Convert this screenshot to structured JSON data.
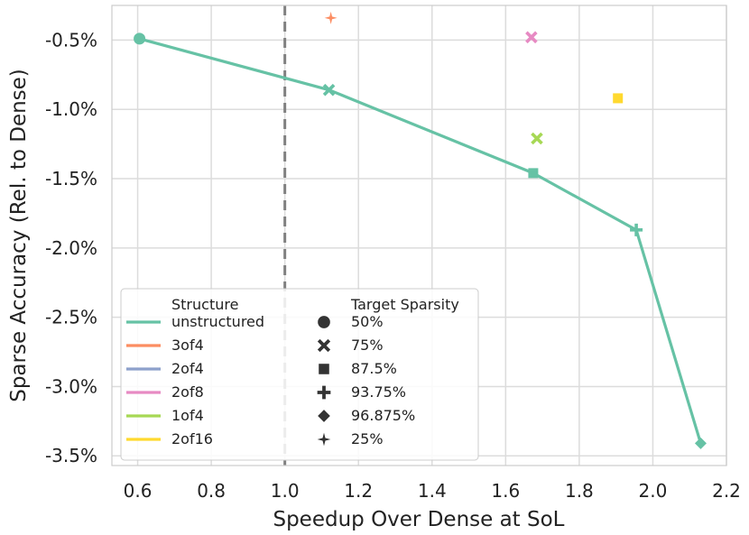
{
  "chart_data": {
    "type": "scatter",
    "xlabel": "Speedup Over Dense at SoL",
    "ylabel": "Sparse Accuracy (Rel. to Dense)",
    "xlim": [
      0.53,
      2.2
    ],
    "ylim": [
      -3.57,
      -0.25
    ],
    "xticks": [
      0.6,
      0.8,
      1.0,
      1.2,
      1.4,
      1.6,
      1.8,
      2.0,
      2.2
    ],
    "xtick_labels": [
      "0.6",
      "0.8",
      "1.0",
      "1.2",
      "1.4",
      "1.6",
      "1.8",
      "2.0",
      "2.2"
    ],
    "yticks": [
      -0.5,
      -1.0,
      -1.5,
      -2.0,
      -2.5,
      -3.0,
      -3.5
    ],
    "ytick_labels": [
      "-0.5%",
      "-1.0%",
      "-1.5%",
      "-2.0%",
      "-2.5%",
      "-3.0%",
      "-3.5%"
    ],
    "grid": true,
    "reference_line": {
      "x": 1.0,
      "style": "dashed",
      "color": "#808080"
    },
    "series": [
      {
        "name": "unstructured",
        "color": "#66c2a5",
        "line": true,
        "points": [
          {
            "x": 0.605,
            "y": -0.49,
            "marker": "circle",
            "sparsity": "50%"
          },
          {
            "x": 1.12,
            "y": -0.86,
            "marker": "x",
            "sparsity": "75%"
          },
          {
            "x": 1.675,
            "y": -1.46,
            "marker": "square",
            "sparsity": "87.5%"
          },
          {
            "x": 1.955,
            "y": -1.87,
            "marker": "plus",
            "sparsity": "93.75%"
          },
          {
            "x": 2.13,
            "y": -3.41,
            "marker": "diamond",
            "sparsity": "96.875%"
          }
        ]
      },
      {
        "name": "3of4",
        "color": "#fc8d62",
        "line": false,
        "points": [
          {
            "x": 1.125,
            "y": -0.34,
            "marker": "star",
            "sparsity": "25%"
          }
        ]
      },
      {
        "name": "2of4",
        "color": "#8da0cb",
        "line": false,
        "points": []
      },
      {
        "name": "2of8",
        "color": "#e78ac3",
        "line": false,
        "points": [
          {
            "x": 1.67,
            "y": -0.48,
            "marker": "x",
            "sparsity": "75%"
          }
        ]
      },
      {
        "name": "1of4",
        "color": "#a6d854",
        "line": false,
        "points": [
          {
            "x": 1.685,
            "y": -1.21,
            "marker": "x",
            "sparsity": "75%"
          }
        ]
      },
      {
        "name": "2of16",
        "color": "#ffd92f",
        "line": false,
        "points": [
          {
            "x": 1.905,
            "y": -0.92,
            "marker": "square",
            "sparsity": "87.5%"
          }
        ]
      }
    ],
    "legend": {
      "placement": "lower-left",
      "structure_title": "Structure",
      "structure_entries": [
        {
          "label": "unstructured",
          "color": "#66c2a5"
        },
        {
          "label": "3of4",
          "color": "#fc8d62"
        },
        {
          "label": "2of4",
          "color": "#8da0cb"
        },
        {
          "label": "2of8",
          "color": "#e78ac3"
        },
        {
          "label": "1of4",
          "color": "#a6d854"
        },
        {
          "label": "2of16",
          "color": "#ffd92f"
        }
      ],
      "sparsity_title": "Target Sparsity",
      "sparsity_entries": [
        {
          "label": "50%",
          "marker": "circle"
        },
        {
          "label": "75%",
          "marker": "x"
        },
        {
          "label": "87.5%",
          "marker": "square"
        },
        {
          "label": "93.75%",
          "marker": "plus"
        },
        {
          "label": "96.875%",
          "marker": "diamond"
        },
        {
          "label": "25%",
          "marker": "star"
        }
      ]
    }
  }
}
